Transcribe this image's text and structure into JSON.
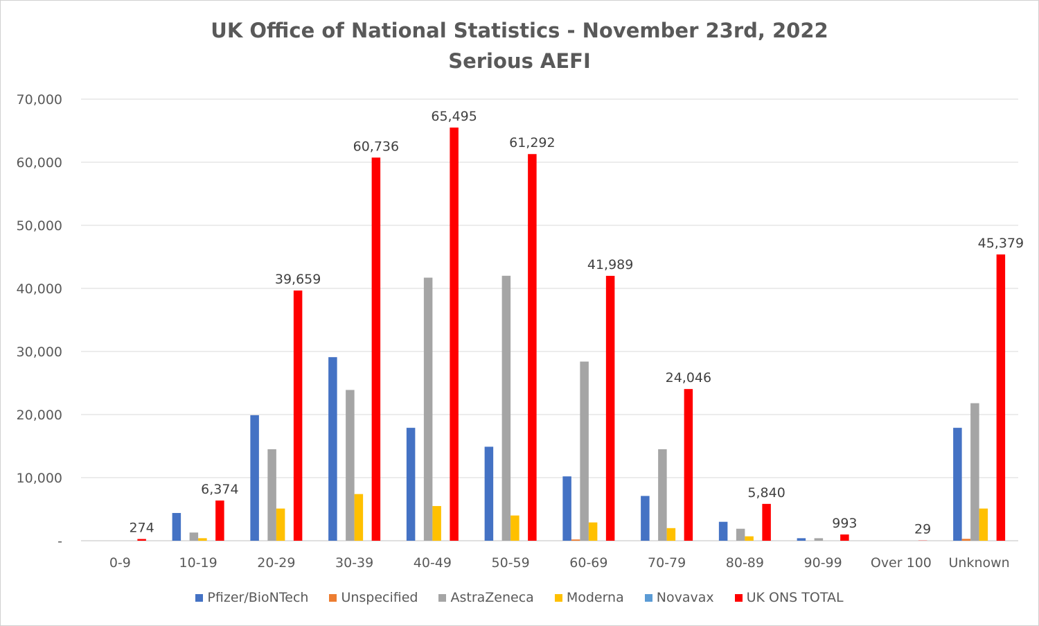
{
  "chart_data": {
    "type": "bar",
    "title": "UK Office of National Statistics - November 23rd, 2022",
    "subtitle": "Serious AEFI",
    "xlabel": "",
    "ylabel": "",
    "ylim": [
      0,
      70000
    ],
    "yticks": [
      0,
      10000,
      20000,
      30000,
      40000,
      50000,
      60000,
      70000
    ],
    "ytick_labels": [
      "-",
      "10,000",
      "20,000",
      "30,000",
      "40,000",
      "50,000",
      "60,000",
      "70,000"
    ],
    "grid": true,
    "legend_position": "bottom",
    "categories": [
      "0-9",
      "10-19",
      "20-29",
      "30-39",
      "40-49",
      "50-59",
      "60-69",
      "70-79",
      "80-89",
      "90-99",
      "Over 100",
      "Unknown"
    ],
    "series": [
      {
        "name": "Pfizer/BioNTech",
        "color": "#4472c4",
        "values": [
          0,
          4400,
          19900,
          29100,
          17900,
          14900,
          10200,
          7100,
          3000,
          400,
          0,
          17900
        ]
      },
      {
        "name": "Unspecified",
        "color": "#ed7d31",
        "values": [
          0,
          0,
          0,
          0,
          0,
          0,
          200,
          0,
          0,
          0,
          0,
          300
        ]
      },
      {
        "name": "AstraZeneca",
        "color": "#a5a5a5",
        "values": [
          0,
          1300,
          14500,
          23900,
          41700,
          42000,
          28400,
          14500,
          1900,
          400,
          0,
          21800
        ]
      },
      {
        "name": "Moderna",
        "color": "#ffc000",
        "values": [
          0,
          400,
          5100,
          7400,
          5500,
          4000,
          2900,
          2000,
          700,
          0,
          0,
          5100
        ]
      },
      {
        "name": "Novavax",
        "color": "#5b9bd5",
        "values": [
          0,
          0,
          0,
          0,
          0,
          0,
          0,
          0,
          0,
          0,
          0,
          0
        ]
      },
      {
        "name": "UK ONS TOTAL",
        "color": "#ff0000",
        "values": [
          274,
          6374,
          39659,
          60736,
          65495,
          61292,
          41989,
          24046,
          5840,
          993,
          29,
          45379
        ],
        "data_labels": [
          "274",
          "6,374",
          "39,659",
          "60,736",
          "65,495",
          "61,292",
          "41,989",
          "24,046",
          "5,840",
          "993",
          "29",
          "45,379"
        ]
      }
    ]
  }
}
